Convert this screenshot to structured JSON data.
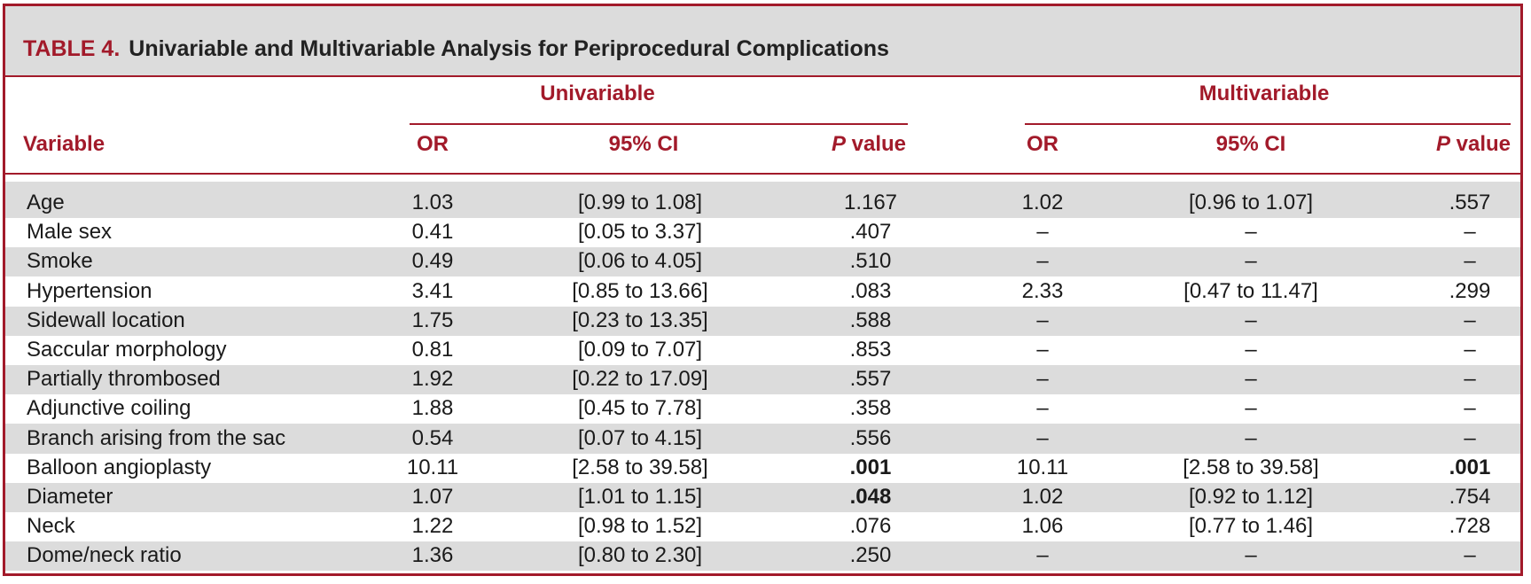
{
  "table": {
    "number": "TABLE 4.",
    "title": "Univariable and Multivariable Analysis for Periprocedural Complications",
    "group_headers": {
      "univariable": "Univariable",
      "multivariable": "Multivariable"
    },
    "columns": {
      "variable": "Variable",
      "or": "OR",
      "ci": "95% CI",
      "p_italic": "P",
      "p_rest": " value"
    },
    "rows": [
      {
        "variable": "Age",
        "u_or": "1.03",
        "u_ci": "[0.99 to 1.08]",
        "u_p": "1.167",
        "m_or": "1.02",
        "m_ci": "[0.96 to 1.07]",
        "m_p": ".557"
      },
      {
        "variable": "Male sex",
        "u_or": "0.41",
        "u_ci": "[0.05 to 3.37]",
        "u_p": ".407",
        "m_or": "–",
        "m_ci": "–",
        "m_p": "–"
      },
      {
        "variable": "Smoke",
        "u_or": "0.49",
        "u_ci": "[0.06 to 4.05]",
        "u_p": ".510",
        "m_or": "–",
        "m_ci": "–",
        "m_p": "–"
      },
      {
        "variable": "Hypertension",
        "u_or": "3.41",
        "u_ci": "[0.85 to 13.66]",
        "u_p": ".083",
        "m_or": "2.33",
        "m_ci": "[0.47 to 11.47]",
        "m_p": ".299"
      },
      {
        "variable": "Sidewall location",
        "u_or": "1.75",
        "u_ci": "[0.23 to 13.35]",
        "u_p": ".588",
        "m_or": "–",
        "m_ci": "–",
        "m_p": "–"
      },
      {
        "variable": "Saccular morphology",
        "u_or": "0.81",
        "u_ci": "[0.09 to 7.07]",
        "u_p": ".853",
        "m_or": "–",
        "m_ci": "–",
        "m_p": "–"
      },
      {
        "variable": "Partially thrombosed",
        "u_or": "1.92",
        "u_ci": "[0.22 to 17.09]",
        "u_p": ".557",
        "m_or": "–",
        "m_ci": "–",
        "m_p": "–"
      },
      {
        "variable": "Adjunctive coiling",
        "u_or": "1.88",
        "u_ci": "[0.45 to 7.78]",
        "u_p": ".358",
        "m_or": "–",
        "m_ci": "–",
        "m_p": "–"
      },
      {
        "variable": "Branch arising from the sac",
        "u_or": "0.54",
        "u_ci": "[0.07 to 4.15]",
        "u_p": ".556",
        "m_or": "–",
        "m_ci": "–",
        "m_p": "–"
      },
      {
        "variable": "Balloon angioplasty",
        "u_or": "10.11",
        "u_ci": "[2.58 to 39.58]",
        "u_p": ".001",
        "u_p_bold": true,
        "m_or": "10.11",
        "m_ci": "[2.58 to 39.58]",
        "m_p": ".001",
        "m_p_bold": true
      },
      {
        "variable": "Diameter",
        "u_or": "1.07",
        "u_ci": "[1.01 to 1.15]",
        "u_p": ".048",
        "u_p_bold": true,
        "m_or": "1.02",
        "m_ci": "[0.92 to 1.12]",
        "m_p": ".754"
      },
      {
        "variable": "Neck",
        "u_or": "1.22",
        "u_ci": "[0.98 to 1.52]",
        "u_p": ".076",
        "m_or": "1.06",
        "m_ci": "[0.77 to 1.46]",
        "m_p": ".728"
      },
      {
        "variable": "Dome/neck ratio",
        "u_or": "1.36",
        "u_ci": "[0.80 to 2.30]",
        "u_p": ".250",
        "m_or": "–",
        "m_ci": "–",
        "m_p": "–"
      }
    ]
  },
  "colors": {
    "accent": "#a21a2a",
    "band": "#dcdcdc"
  }
}
